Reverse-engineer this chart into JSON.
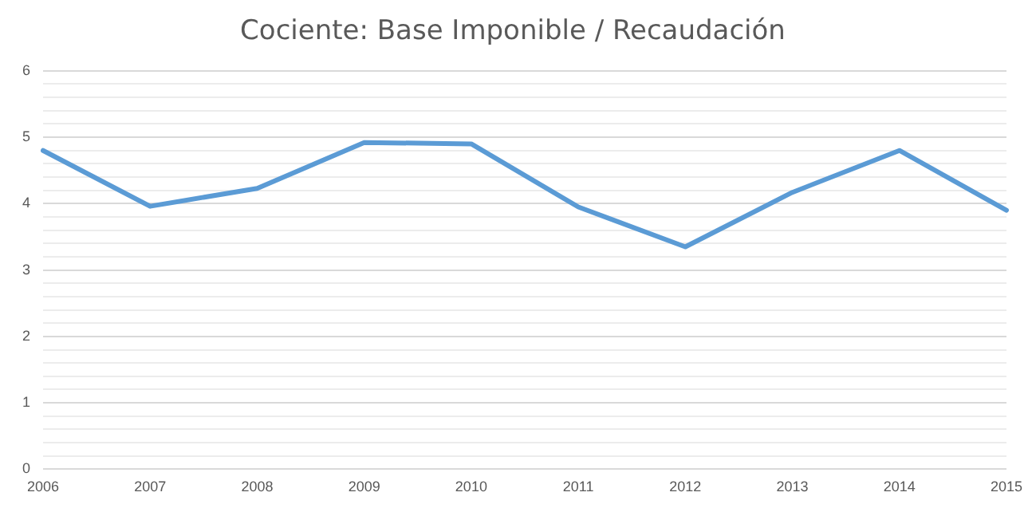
{
  "chart_data": {
    "type": "line",
    "title": "Cociente: Base Imponible / Recaudación",
    "categories": [
      "2006",
      "2007",
      "2008",
      "2009",
      "2010",
      "2011",
      "2012",
      "2013",
      "2014",
      "2015"
    ],
    "series": [
      {
        "color": "#5b9bd5",
        "values": [
          4.8,
          3.96,
          4.23,
          4.92,
          4.9,
          3.95,
          3.35,
          4.17,
          4.8,
          3.9
        ]
      }
    ],
    "ylim": [
      0,
      6
    ],
    "yticks": [
      0,
      {
        "value": 0.2,
        "label": null
      },
      {
        "value": 0.4,
        "label": null
      },
      {
        "value": 0.6,
        "label": null
      },
      {
        "value": 0.8,
        "label": null
      },
      1,
      {
        "value": 1.2,
        "label": null
      },
      {
        "value": 1.4,
        "label": null
      },
      {
        "value": 1.6,
        "label": null
      },
      {
        "value": 1.8,
        "label": null
      },
      2,
      {
        "value": 2.2,
        "label": null
      },
      {
        "value": 2.4,
        "label": null
      },
      {
        "value": 2.6,
        "label": null
      },
      {
        "value": 2.8,
        "label": null
      },
      3,
      {
        "value": 3.2,
        "label": null
      },
      {
        "value": 3.4,
        "label": null
      },
      {
        "value": 3.6,
        "label": null
      },
      {
        "value": 3.8,
        "label": null
      },
      4,
      {
        "value": 4.2,
        "label": null
      },
      {
        "value": 4.4,
        "label": null
      },
      {
        "value": 4.6,
        "label": null
      },
      {
        "value": 4.8,
        "label": null
      },
      5,
      {
        "value": 5.2,
        "label": null
      },
      {
        "value": 5.4,
        "label": null
      },
      {
        "value": 5.6,
        "label": null
      },
      {
        "value": 5.8,
        "label": null
      },
      6
    ],
    "grid": "y",
    "legend": false,
    "marker": "none",
    "line_style": "solid"
  }
}
